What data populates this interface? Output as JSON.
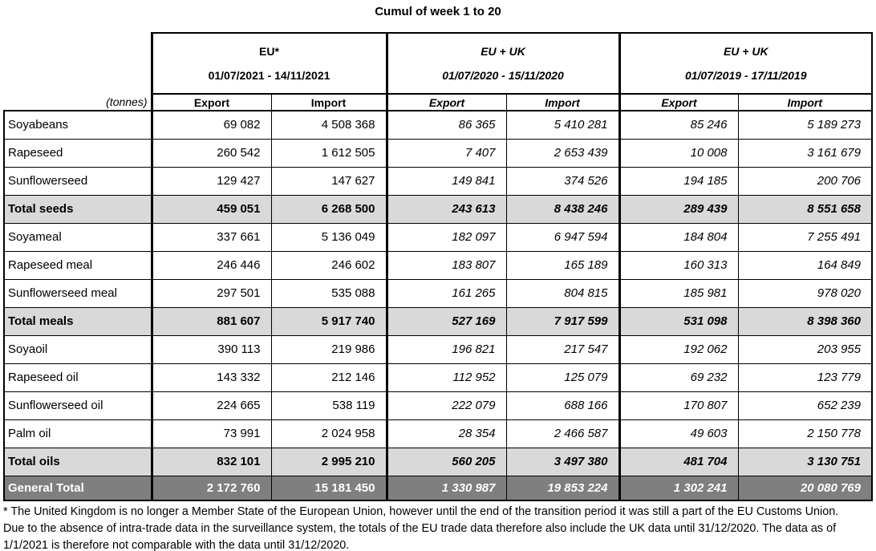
{
  "title": "Cumul of week 1 to 20",
  "table": {
    "unit_label": "(tonnes)",
    "groups": [
      {
        "name": "EU*",
        "period": "01/07/2021 - 14/11/2021",
        "export_label": "Export",
        "import_label": "Import"
      },
      {
        "name": "EU + UK",
        "period": "01/07/2020 - 15/11/2020",
        "export_label": "Export",
        "import_label": "Import"
      },
      {
        "name": "EU + UK",
        "period": "01/07/2019 - 17/11/2019",
        "export_label": "Export",
        "import_label": "Import"
      }
    ],
    "rows": [
      {
        "label": "Soyabeans",
        "type": "data",
        "values": [
          "69 082",
          "4 508 368",
          "86 365",
          "5 410 281",
          "85 246",
          "5 189 273"
        ]
      },
      {
        "label": "Rapeseed",
        "type": "data",
        "values": [
          "260 542",
          "1 612 505",
          "7 407",
          "2 653 439",
          "10 008",
          "3 161 679"
        ]
      },
      {
        "label": "Sunflowerseed",
        "type": "data",
        "values": [
          "129 427",
          "147 627",
          "149 841",
          "374 526",
          "194 185",
          "200 706"
        ]
      },
      {
        "label": "Total seeds",
        "type": "total",
        "values": [
          "459 051",
          "6 268 500",
          "243 613",
          "8 438 246",
          "289 439",
          "8 551 658"
        ]
      },
      {
        "label": "Soyameal",
        "type": "data",
        "values": [
          "337 661",
          "5 136 049",
          "182 097",
          "6 947 594",
          "184 804",
          "7 255 491"
        ]
      },
      {
        "label": "Rapeseed meal",
        "type": "data",
        "values": [
          "246 446",
          "246 602",
          "183 807",
          "165 189",
          "160 313",
          "164 849"
        ]
      },
      {
        "label": "Sunflowerseed meal",
        "type": "data",
        "values": [
          "297 501",
          "535 088",
          "161 265",
          "804 815",
          "185 981",
          "978 020"
        ]
      },
      {
        "label": "Total meals",
        "type": "total",
        "values": [
          "881 607",
          "5 917 740",
          "527 169",
          "7 917 599",
          "531 098",
          "8 398 360"
        ]
      },
      {
        "label": "Soyaoil",
        "type": "data",
        "values": [
          "390 113",
          "219 986",
          "196 821",
          "217 547",
          "192 062",
          "203 955"
        ]
      },
      {
        "label": "Rapeseed oil",
        "type": "data",
        "values": [
          "143 332",
          "212 146",
          "112 952",
          "125 079",
          "69 232",
          "123 779"
        ]
      },
      {
        "label": "Sunflowerseed oil",
        "type": "data",
        "values": [
          "224 665",
          "538 119",
          "222 079",
          "688 166",
          "170 807",
          "652 239"
        ]
      },
      {
        "label": "Palm oil",
        "type": "data",
        "values": [
          "73 991",
          "2 024 958",
          "28 354",
          "2 466 587",
          "49 603",
          "2 150 778"
        ]
      },
      {
        "label": "Total oils",
        "type": "total",
        "values": [
          "832 101",
          "2 995 210",
          "560 205",
          "3 497 380",
          "481 704",
          "3 130 751"
        ]
      },
      {
        "label": "General Total",
        "type": "grand",
        "values": [
          "2 172 760",
          "15 181 450",
          "1 330 987",
          "19 853 224",
          "1 302 241",
          "20 080 769"
        ]
      }
    ]
  },
  "footnote": {
    "lines": [
      "* The United Kingdom is no longer a Member State of the European Union, however until the end of the transition period it was still a part of the EU Customs Union.",
      "Due to the absence of intra-trade data in the surveillance system, the totals of the EU trade data  therefore also include the UK data until 31/12/2020. The data as of",
      "1/1/2021 is therefore not comparable with the data until 31/12/2020."
    ]
  },
  "colors": {
    "total_row_bg": "#d9d9d9",
    "grand_row_bg": "#7f7f7f",
    "grand_row_text": "#ffffff",
    "border": "#000000"
  }
}
